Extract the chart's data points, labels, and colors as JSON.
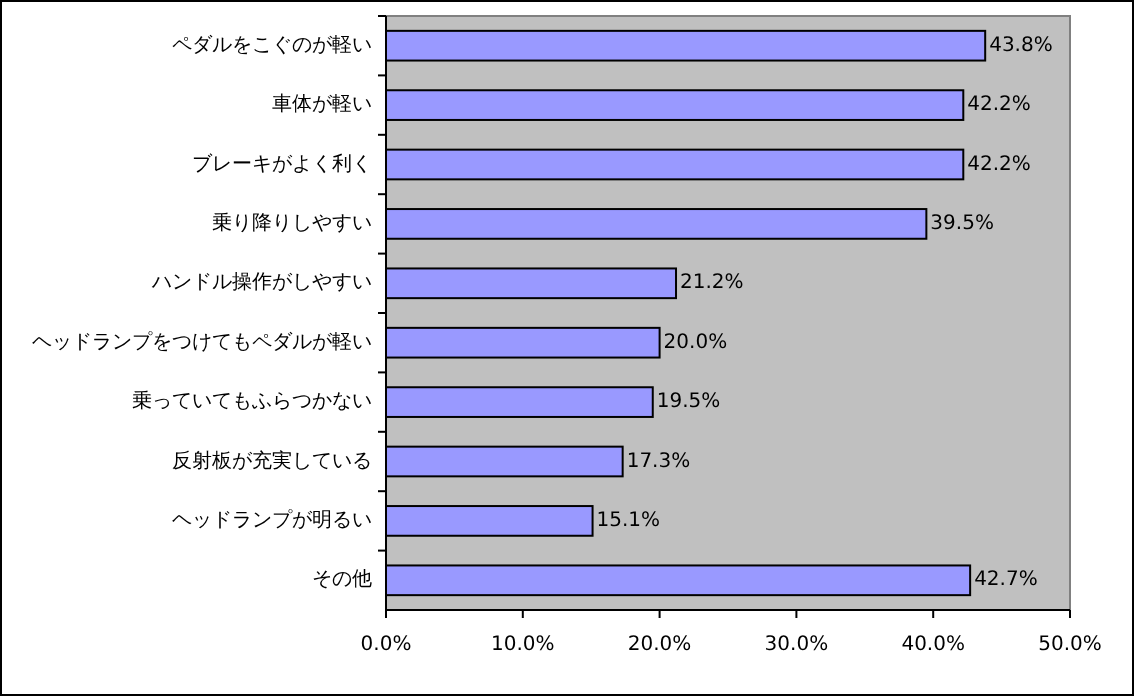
{
  "chart_data": {
    "type": "bar",
    "orientation": "horizontal",
    "categories": [
      "ペダルをこぐのが軽い",
      "車体が軽い",
      "ブレーキがよく利く",
      "乗り降りしやすい",
      "ハンドル操作がしやすい",
      "ヘッドランプをつけてもペダルが軽い",
      "乗っていてもふらつかない",
      "反射板が充実している",
      "ヘッドランプが明るい",
      "その他"
    ],
    "values": [
      43.8,
      42.2,
      42.2,
      39.5,
      21.2,
      20.0,
      19.5,
      17.3,
      15.1,
      42.7
    ],
    "value_labels": [
      "43.8%",
      "42.2%",
      "42.2%",
      "39.5%",
      "21.2%",
      "20.0%",
      "19.5%",
      "17.3%",
      "15.1%",
      "42.7%"
    ],
    "color": "#9999ff",
    "xlim": [
      0,
      50
    ],
    "xticks": [
      {
        "value": 0,
        "label": "0.0%"
      },
      {
        "value": 10,
        "label": "10.0%"
      },
      {
        "value": 20,
        "label": "20.0%"
      },
      {
        "value": 30,
        "label": "30.0%"
      },
      {
        "value": 40,
        "label": "40.0%"
      },
      {
        "value": 50,
        "label": "50.0%"
      }
    ],
    "grid": false
  }
}
